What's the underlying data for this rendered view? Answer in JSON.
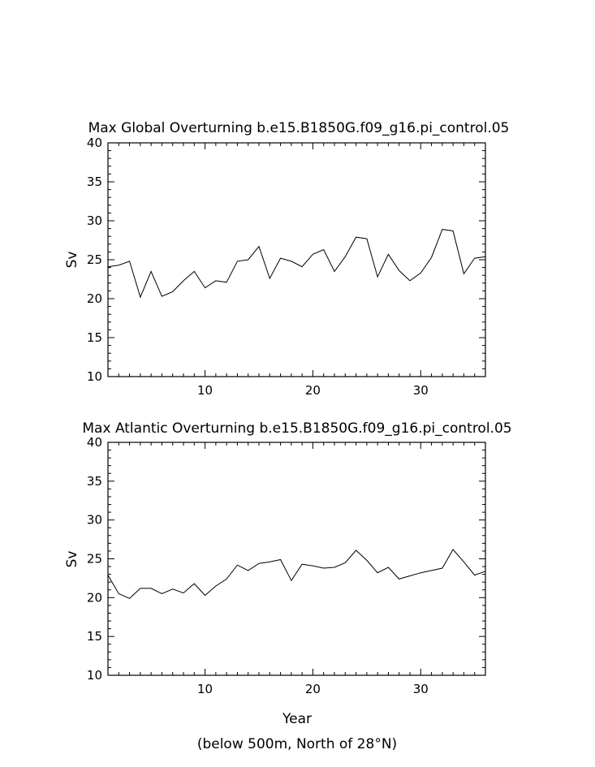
{
  "chart_data": [
    {
      "type": "line",
      "title": "Max Global Overturning b.e15.B1850G.f09_g16.pi_control.05",
      "ylabel": "Sv",
      "xlabel": "",
      "xlim": [
        1,
        36
      ],
      "ylim": [
        10,
        40
      ],
      "xticks": [
        10,
        20,
        30
      ],
      "yticks": [
        10,
        15,
        20,
        25,
        30,
        35,
        40
      ],
      "x": [
        1,
        2,
        3,
        4,
        5,
        6,
        7,
        8,
        9,
        10,
        11,
        12,
        13,
        14,
        15,
        16,
        17,
        18,
        19,
        20,
        21,
        22,
        23,
        24,
        25,
        26,
        27,
        28,
        29,
        30,
        31,
        32,
        33,
        34,
        35,
        36
      ],
      "series": [
        {
          "values": [
            24.1,
            24.3,
            24.8,
            20.2,
            23.5,
            20.3,
            20.9,
            22.3,
            23.5,
            21.4,
            22.3,
            22.1,
            24.8,
            25.0,
            26.7,
            22.6,
            25.2,
            24.8,
            24.1,
            25.7,
            26.3,
            23.5,
            25.4,
            27.9,
            27.7,
            22.8,
            25.7,
            23.6,
            22.3,
            23.3,
            25.3,
            28.9,
            28.7,
            23.2,
            25.2,
            25.4
          ]
        }
      ],
      "grid": false
    },
    {
      "type": "line",
      "title": "Max Atlantic Overturning b.e15.B1850G.f09_g16.pi_control.05",
      "ylabel": "Sv",
      "xlabel": "Year",
      "xlim": [
        1,
        36
      ],
      "ylim": [
        10,
        40
      ],
      "xticks": [
        10,
        20,
        30
      ],
      "yticks": [
        10,
        15,
        20,
        25,
        30,
        35,
        40
      ],
      "x": [
        1,
        2,
        3,
        4,
        5,
        6,
        7,
        8,
        9,
        10,
        11,
        12,
        13,
        14,
        15,
        16,
        17,
        18,
        19,
        20,
        21,
        22,
        23,
        24,
        25,
        26,
        27,
        28,
        29,
        30,
        31,
        32,
        33,
        34,
        35,
        36
      ],
      "series": [
        {
          "values": [
            22.9,
            20.5,
            19.9,
            21.2,
            21.2,
            20.5,
            21.1,
            20.6,
            21.8,
            20.3,
            21.5,
            22.4,
            24.2,
            23.5,
            24.4,
            24.6,
            24.9,
            22.2,
            24.3,
            24.1,
            23.8,
            23.9,
            24.5,
            26.1,
            24.8,
            23.2,
            23.9,
            22.4,
            22.8,
            23.2,
            23.5,
            23.8,
            26.2,
            24.6,
            22.9,
            23.4
          ]
        }
      ],
      "grid": false
    }
  ],
  "footer_note": "(below 500m, North of 28°N)"
}
